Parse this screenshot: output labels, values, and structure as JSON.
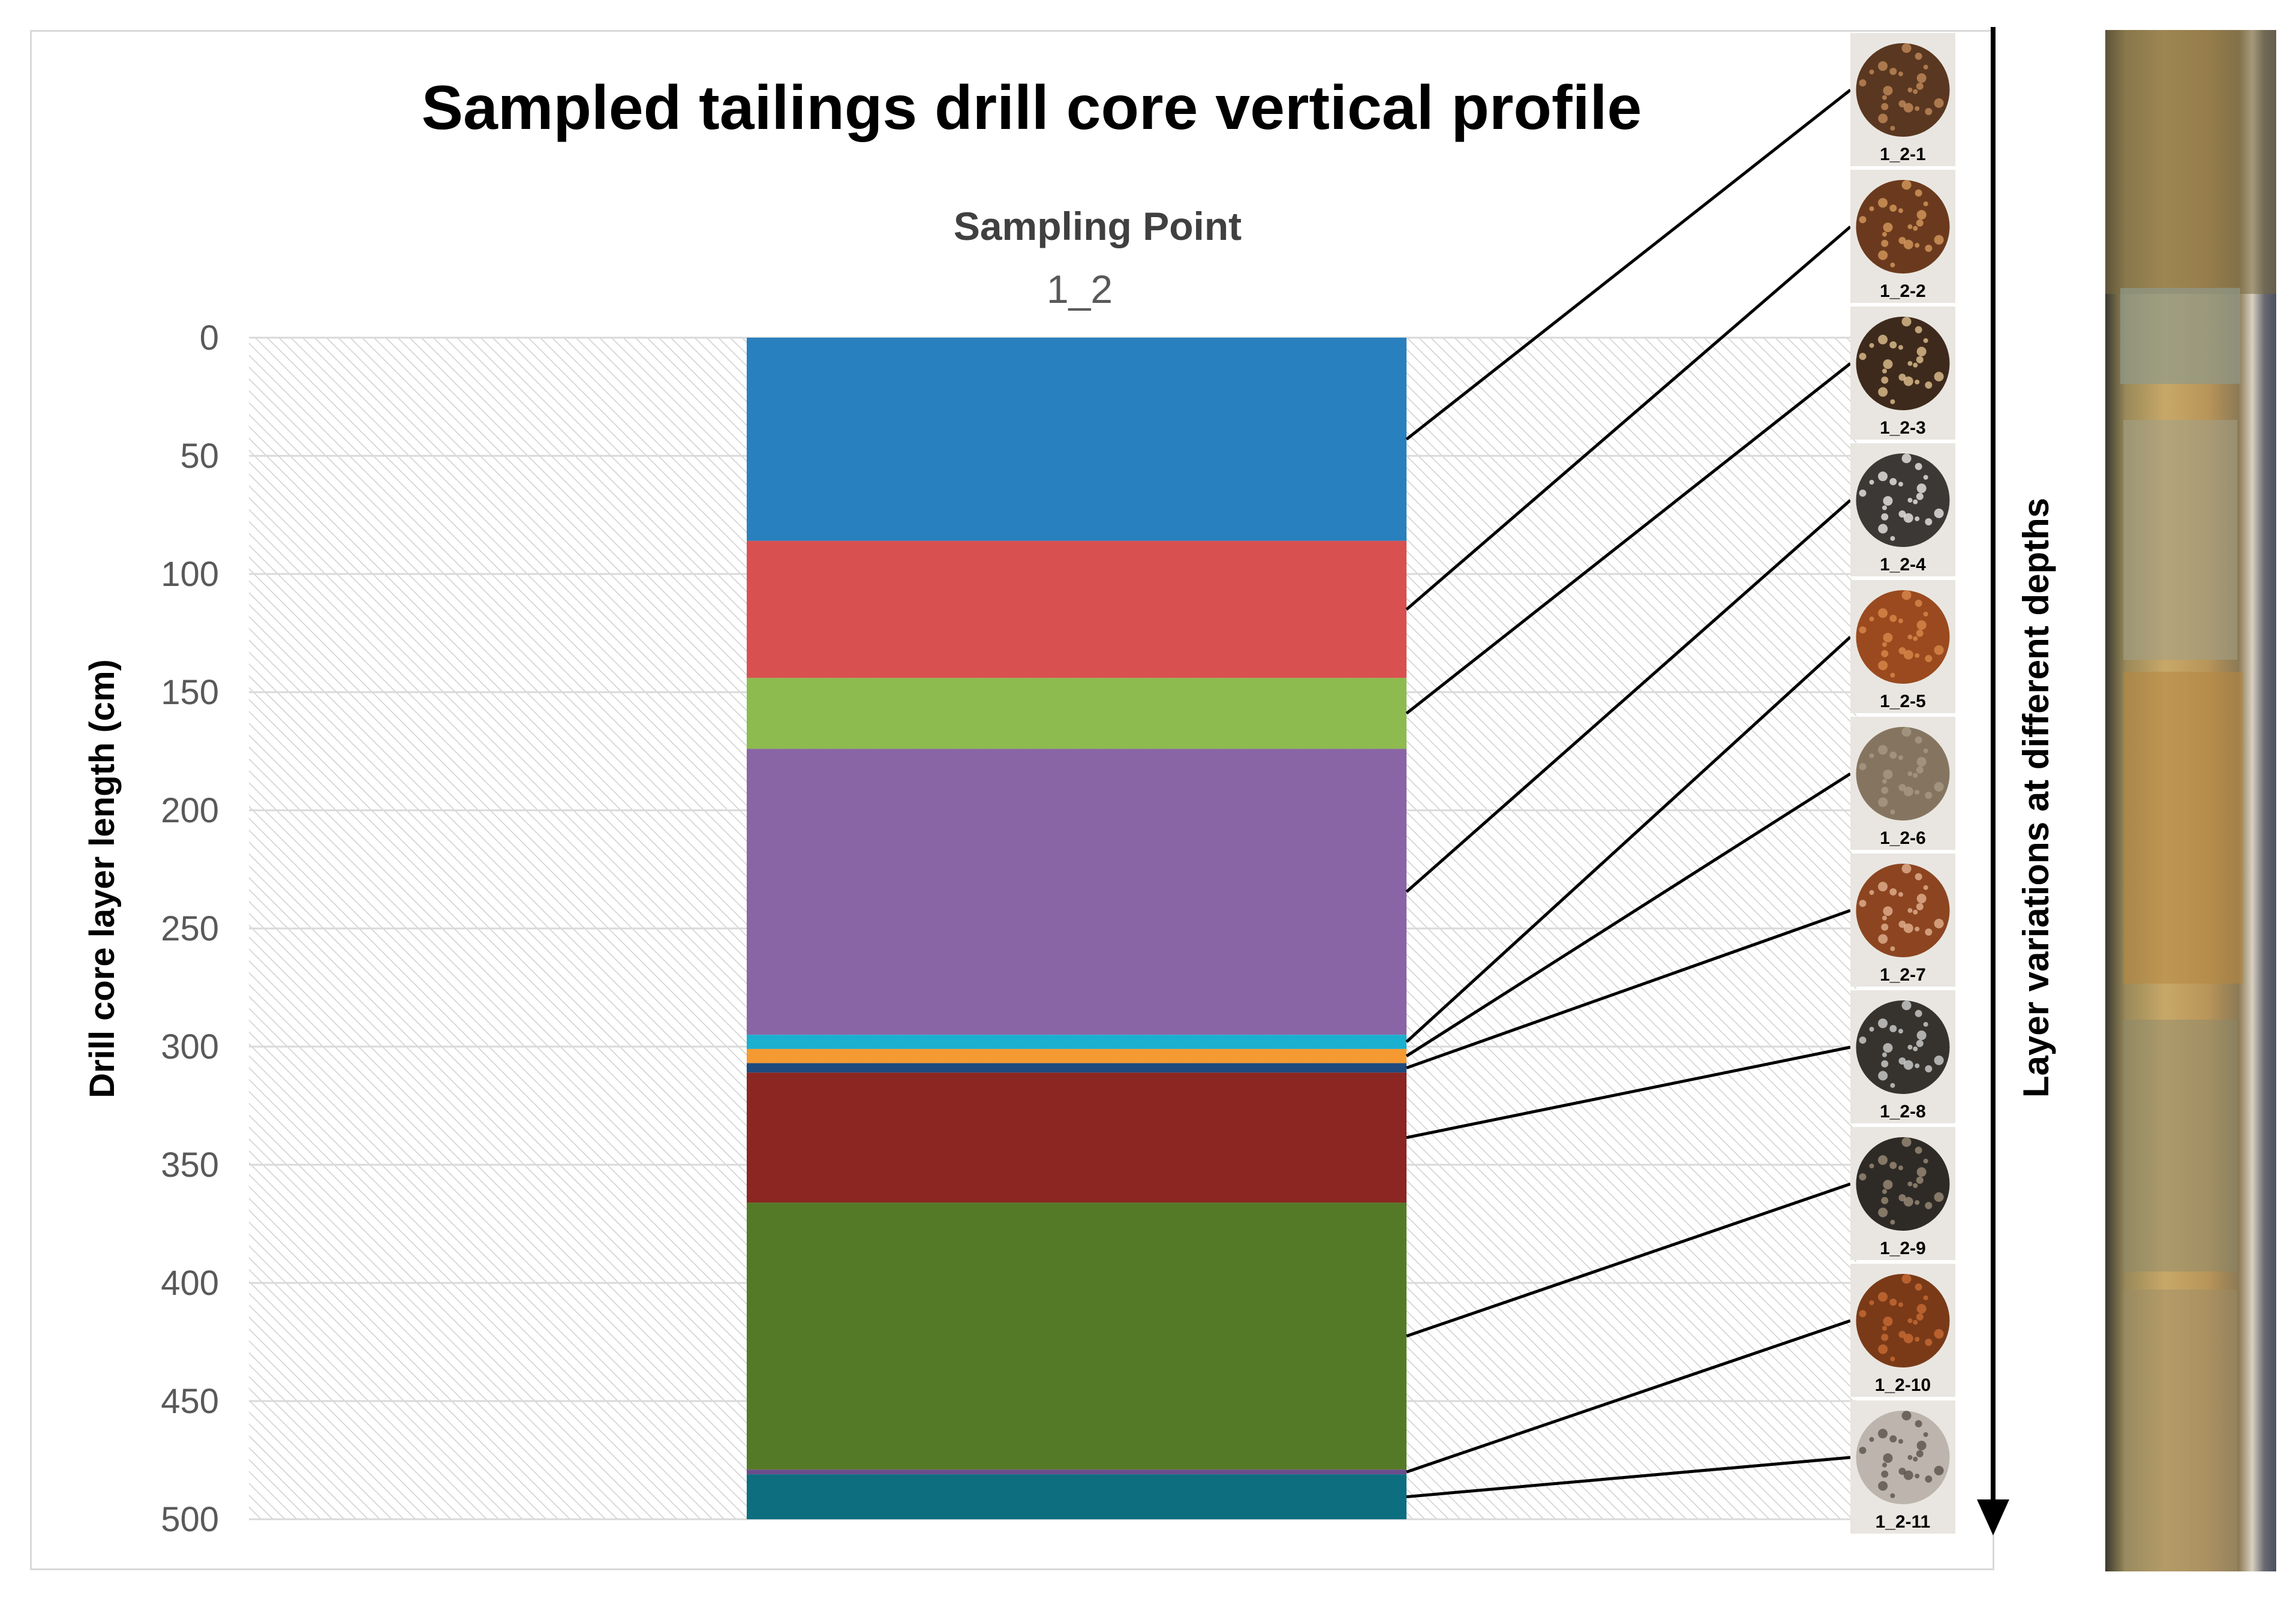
{
  "chart_data": {
    "type": "stacked-bar",
    "title": "Sampled tailings drill core vertical profile",
    "subtitle": "Sampling Point",
    "series_label": "1_2",
    "ylabel": "Drill core layer length (cm)",
    "ylim": [
      0,
      500
    ],
    "yticks": [
      0,
      50,
      100,
      150,
      200,
      250,
      300,
      350,
      400,
      450,
      500
    ],
    "yticks_reversed": true,
    "side_label": "Layer variations at different depths",
    "layers": [
      {
        "name": "1_2-1",
        "from": 0,
        "to": 86,
        "color": "#2980BE"
      },
      {
        "name": "1_2-2",
        "from": 86,
        "to": 144,
        "color": "#D95050"
      },
      {
        "name": "1_2-3",
        "from": 144,
        "to": 174,
        "color": "#8DBB4F"
      },
      {
        "name": "1_2-4",
        "from": 174,
        "to": 295,
        "color": "#8A65A6"
      },
      {
        "name": "1_2-5",
        "from": 295,
        "to": 301,
        "color": "#1BAFD0"
      },
      {
        "name": "1_2-6",
        "from": 301,
        "to": 307,
        "color": "#F59A32"
      },
      {
        "name": "1_2-7",
        "from": 307,
        "to": 311,
        "color": "#1F4A7E"
      },
      {
        "name": "1_2-8",
        "from": 311,
        "to": 366,
        "color": "#8B2622"
      },
      {
        "name": "1_2-9",
        "from": 366,
        "to": 479,
        "color": "#557A27"
      },
      {
        "name": "1_2-10",
        "from": 479,
        "to": 481,
        "color": "#6A4C8C"
      },
      {
        "name": "1_2-11",
        "from": 481,
        "to": 500,
        "color": "#0D6E80"
      }
    ],
    "samples": [
      {
        "label": "1_2-1",
        "color": "#5a3720",
        "speckle": "#c08a5a"
      },
      {
        "label": "1_2-2",
        "color": "#6b3a1e",
        "speckle": "#d69a5c"
      },
      {
        "label": "1_2-3",
        "color": "#3e2a1c",
        "speckle": "#e0c090"
      },
      {
        "label": "1_2-4",
        "color": "#3c3835",
        "speckle": "#e8e8e8"
      },
      {
        "label": "1_2-5",
        "color": "#9a4a1e",
        "speckle": "#d8884a"
      },
      {
        "label": "1_2-6",
        "color": "#857560",
        "speckle": "#a69a84"
      },
      {
        "label": "1_2-7",
        "color": "#8c4520",
        "speckle": "#e2b090"
      },
      {
        "label": "1_2-8",
        "color": "#36332f",
        "speckle": "#d0d0d0"
      },
      {
        "label": "1_2-9",
        "color": "#2e2b27",
        "speckle": "#9c8c78"
      },
      {
        "label": "1_2-10",
        "color": "#7a3a18",
        "speckle": "#c86c34"
      },
      {
        "label": "1_2-11",
        "color": "#bdb5ad",
        "speckle": "#5a524a"
      }
    ]
  }
}
